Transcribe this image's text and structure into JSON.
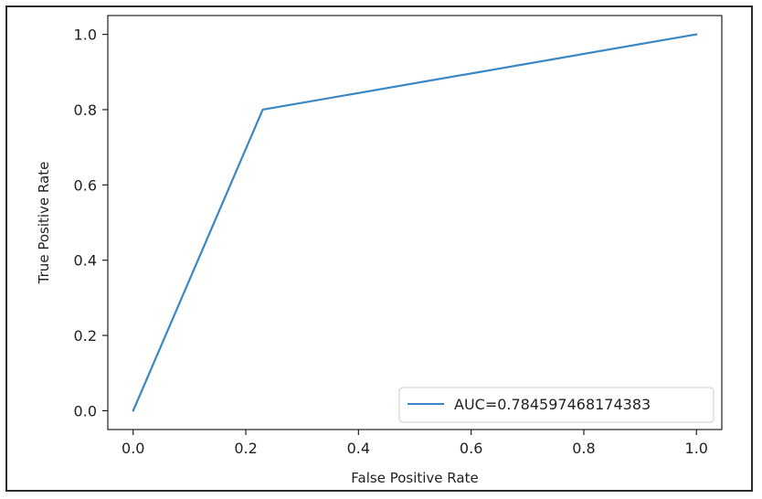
{
  "chart_data": {
    "type": "line",
    "title": "",
    "xlabel": "False Positive Rate",
    "ylabel": "True Positive Rate",
    "xlim": [
      -0.045,
      1.045
    ],
    "ylim": [
      -0.05,
      1.05
    ],
    "xticks": [
      0.0,
      0.2,
      0.4,
      0.6,
      0.8,
      1.0
    ],
    "xtick_labels": [
      "0.0",
      "0.2",
      "0.4",
      "0.6",
      "0.8",
      "1.0"
    ],
    "yticks": [
      0.0,
      0.2,
      0.4,
      0.6,
      0.8,
      1.0
    ],
    "ytick_labels": [
      "0.0",
      "0.2",
      "0.4",
      "0.6",
      "0.8",
      "1.0"
    ],
    "grid": false,
    "legend_position": "lower-right",
    "series": [
      {
        "name": "AUC=0.784597468174383",
        "color": "#3b86c4",
        "x": [
          0.0,
          0.23,
          1.0
        ],
        "y": [
          0.0,
          0.8,
          1.0
        ]
      }
    ]
  }
}
